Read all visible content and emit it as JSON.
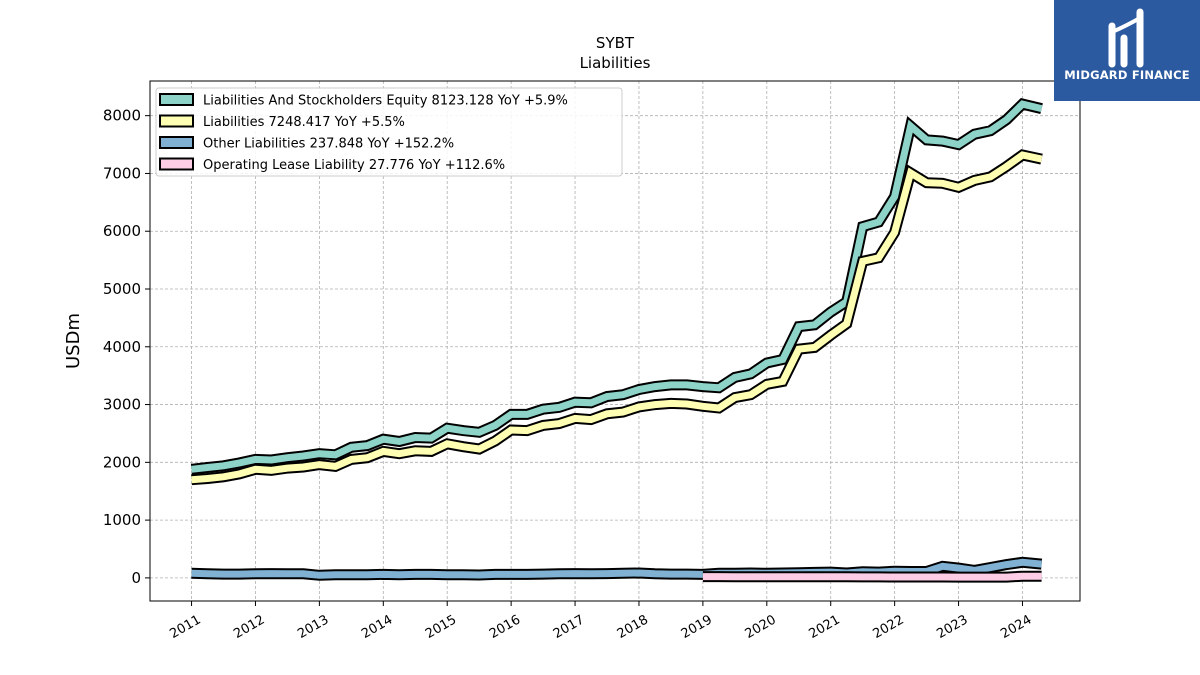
{
  "chart_data": {
    "type": "area",
    "title": "SYBT",
    "subtitle": "Liabilities",
    "ylabel": "USDm",
    "xlabel": "",
    "xlim": [
      2010.35,
      2024.9
    ],
    "ylim": [
      -400,
      8600
    ],
    "yticks": [
      0,
      1000,
      2000,
      3000,
      4000,
      5000,
      6000,
      7000,
      8000
    ],
    "xticks": [
      2011,
      2012,
      2013,
      2014,
      2015,
      2016,
      2017,
      2018,
      2019,
      2020,
      2021,
      2022,
      2023,
      2024
    ],
    "grid": true,
    "legend_position": "upper-left",
    "series": [
      {
        "name": "Liabilities And Stockholders Equity",
        "legend": "Liabilities And Stockholders Equity  8123.128 YoY +5.9%",
        "color": "#8dd3c7",
        "x": [
          2011.0,
          2011.25,
          2011.5,
          2011.75,
          2012.0,
          2012.25,
          2012.5,
          2012.75,
          2013.0,
          2013.25,
          2013.5,
          2013.75,
          2014.0,
          2014.25,
          2014.5,
          2014.75,
          2015.0,
          2015.25,
          2015.5,
          2015.75,
          2016.0,
          2016.25,
          2016.5,
          2016.75,
          2017.0,
          2017.25,
          2017.5,
          2017.75,
          2018.0,
          2018.25,
          2018.5,
          2018.75,
          2019.0,
          2019.25,
          2019.5,
          2019.75,
          2020.0,
          2020.25,
          2020.5,
          2020.75,
          2021.0,
          2021.25,
          2021.5,
          2021.75,
          2022.0,
          2022.25,
          2022.5,
          2022.75,
          2023.0,
          2023.25,
          2023.5,
          2023.75,
          2024.0,
          2024.3
        ],
        "values": [
          1880,
          1910,
          1940,
          1990,
          2050,
          2040,
          2080,
          2110,
          2150,
          2130,
          2260,
          2290,
          2400,
          2360,
          2430,
          2420,
          2590,
          2550,
          2520,
          2640,
          2830,
          2830,
          2920,
          2950,
          3040,
          3030,
          3140,
          3170,
          3260,
          3310,
          3340,
          3340,
          3310,
          3290,
          3470,
          3530,
          3720,
          3780,
          4350,
          4380,
          4600,
          4780,
          6080,
          6160,
          6600,
          7820,
          7580,
          7560,
          7500,
          7680,
          7740,
          7930,
          8200,
          8123
        ]
      },
      {
        "name": "Liabilities",
        "legend": "Liabilities  7248.417 YoY +5.5%",
        "color": "#ffffb3",
        "x": [
          2011.0,
          2011.25,
          2011.5,
          2011.75,
          2012.0,
          2012.25,
          2012.5,
          2012.75,
          2013.0,
          2013.25,
          2013.5,
          2013.75,
          2014.0,
          2014.25,
          2014.5,
          2014.75,
          2015.0,
          2015.25,
          2015.5,
          2015.75,
          2016.0,
          2016.25,
          2016.5,
          2016.75,
          2017.0,
          2017.25,
          2017.5,
          2017.75,
          2018.0,
          2018.25,
          2018.5,
          2018.75,
          2019.0,
          2019.25,
          2019.5,
          2019.75,
          2020.0,
          2020.25,
          2020.5,
          2020.75,
          2021.0,
          2021.25,
          2021.5,
          2021.75,
          2022.0,
          2022.25,
          2022.5,
          2022.75,
          2023.0,
          2023.25,
          2023.5,
          2023.75,
          2024.0,
          2024.3
        ],
        "values": [
          1700,
          1720,
          1750,
          1800,
          1880,
          1860,
          1900,
          1920,
          1960,
          1930,
          2050,
          2080,
          2190,
          2150,
          2200,
          2190,
          2320,
          2270,
          2230,
          2370,
          2560,
          2550,
          2640,
          2670,
          2760,
          2740,
          2840,
          2870,
          2960,
          3000,
          3020,
          3010,
          2970,
          2940,
          3120,
          3170,
          3350,
          3400,
          3960,
          3990,
          4200,
          4400,
          5480,
          5540,
          5980,
          7010,
          6840,
          6830,
          6760,
          6880,
          6940,
          7120,
          7320,
          7248
        ]
      },
      {
        "name": "Other Liabilities",
        "legend": "Other Liabilities  237.848 YoY +152.2%",
        "color": "#80b1d3",
        "x": [
          2011.0,
          2011.25,
          2011.5,
          2011.75,
          2012.0,
          2012.25,
          2012.5,
          2012.75,
          2013.0,
          2013.25,
          2013.5,
          2013.75,
          2014.0,
          2014.25,
          2014.5,
          2014.75,
          2015.0,
          2015.25,
          2015.5,
          2015.75,
          2016.0,
          2016.25,
          2016.5,
          2016.75,
          2017.0,
          2017.25,
          2017.5,
          2017.75,
          2018.0,
          2018.25,
          2018.5,
          2018.75,
          2019.0,
          2019.25,
          2019.5,
          2019.75,
          2020.0,
          2020.25,
          2020.5,
          2020.75,
          2021.0,
          2021.25,
          2021.5,
          2021.75,
          2022.0,
          2022.25,
          2022.5,
          2022.75,
          2023.0,
          2023.25,
          2023.5,
          2023.75,
          2024.0,
          2024.3
        ],
        "values": [
          80,
          70,
          65,
          65,
          70,
          75,
          70,
          70,
          45,
          55,
          55,
          55,
          60,
          55,
          60,
          60,
          55,
          55,
          50,
          60,
          60,
          60,
          65,
          70,
          75,
          70,
          75,
          80,
          85,
          70,
          65,
          65,
          60,
          80,
          80,
          85,
          80,
          85,
          90,
          95,
          100,
          85,
          105,
          100,
          115,
          110,
          110,
          200,
          170,
          130,
          180,
          230,
          270,
          238
        ]
      },
      {
        "name": "Operating Lease Liability",
        "legend": "Operating Lease Liability  27.776 YoY +112.6%",
        "color": "#fccde5",
        "x": [
          2019.0,
          2019.25,
          2019.5,
          2019.75,
          2020.0,
          2020.25,
          2020.5,
          2020.75,
          2021.0,
          2021.25,
          2021.5,
          2021.75,
          2022.0,
          2022.25,
          2022.5,
          2022.75,
          2023.0,
          2023.25,
          2023.5,
          2023.75,
          2024.0,
          2024.3
        ],
        "values": [
          22,
          22,
          21,
          21,
          20,
          20,
          19,
          19,
          18,
          18,
          17,
          17,
          16,
          16,
          15,
          15,
          14,
          14,
          13,
          13,
          30,
          28
        ]
      }
    ]
  },
  "logo": {
    "text": "MIDGARD FINANCE",
    "bg_color": "#2c5aa0"
  }
}
